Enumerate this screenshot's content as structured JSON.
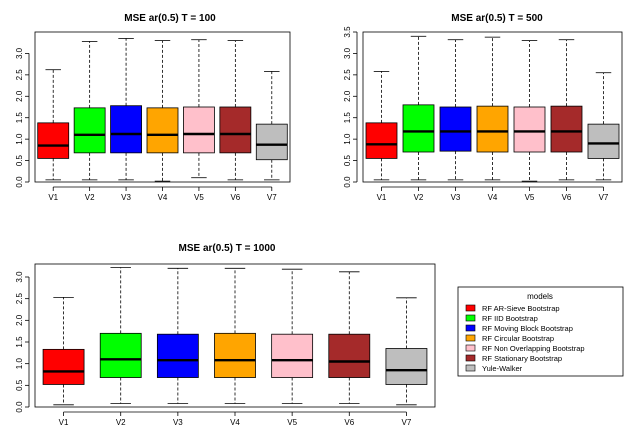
{
  "chart_data": [
    {
      "type": "boxplot",
      "title": "MSE ar(0.5) T = 100",
      "xlabel": "",
      "ylabel": "",
      "categories": [
        "V1",
        "V2",
        "V3",
        "V4",
        "V5",
        "V6",
        "V7"
      ],
      "ylim": [
        0,
        3.5
      ],
      "yticks": [
        0.0,
        0.5,
        1.0,
        1.5,
        2.0,
        2.5,
        3.0
      ],
      "ytick_labels": [
        "0.0",
        "0.5",
        "1.0",
        "1.5",
        "2.0",
        "2.5",
        "3.0"
      ],
      "grid": false,
      "boxes": [
        {
          "min": 0.05,
          "q1": 0.55,
          "median": 0.85,
          "q3": 1.38,
          "max": 2.62
        },
        {
          "min": 0.05,
          "q1": 0.68,
          "median": 1.1,
          "q3": 1.73,
          "max": 3.28
        },
        {
          "min": 0.05,
          "q1": 0.68,
          "median": 1.12,
          "q3": 1.78,
          "max": 3.35
        },
        {
          "min": 0.02,
          "q1": 0.68,
          "median": 1.1,
          "q3": 1.73,
          "max": 3.3
        },
        {
          "min": 0.1,
          "q1": 0.68,
          "median": 1.12,
          "q3": 1.75,
          "max": 3.32
        },
        {
          "min": 0.05,
          "q1": 0.68,
          "median": 1.12,
          "q3": 1.75,
          "max": 3.3
        },
        {
          "min": 0.05,
          "q1": 0.52,
          "median": 0.87,
          "q3": 1.35,
          "max": 2.58
        }
      ]
    },
    {
      "type": "boxplot",
      "title": "MSE ar(0.5) T = 500",
      "xlabel": "",
      "ylabel": "",
      "categories": [
        "V1",
        "V2",
        "V3",
        "V4",
        "V5",
        "V6",
        "V7"
      ],
      "ylim": [
        0,
        3.5
      ],
      "yticks": [
        0.0,
        0.5,
        1.0,
        1.5,
        2.0,
        2.5,
        3.0,
        3.5
      ],
      "ytick_labels": [
        "0.0",
        "0.5",
        "1.0",
        "1.5",
        "2.0",
        "2.5",
        "3.0",
        "3.5"
      ],
      "grid": false,
      "boxes": [
        {
          "min": 0.05,
          "q1": 0.55,
          "median": 0.88,
          "q3": 1.38,
          "max": 2.58
        },
        {
          "min": 0.05,
          "q1": 0.7,
          "median": 1.18,
          "q3": 1.8,
          "max": 3.4
        },
        {
          "min": 0.05,
          "q1": 0.72,
          "median": 1.18,
          "q3": 1.75,
          "max": 3.32
        },
        {
          "min": 0.05,
          "q1": 0.7,
          "median": 1.18,
          "q3": 1.77,
          "max": 3.38
        },
        {
          "min": 0.02,
          "q1": 0.7,
          "median": 1.18,
          "q3": 1.75,
          "max": 3.3
        },
        {
          "min": 0.05,
          "q1": 0.7,
          "median": 1.18,
          "q3": 1.77,
          "max": 3.32
        },
        {
          "min": 0.05,
          "q1": 0.55,
          "median": 0.9,
          "q3": 1.35,
          "max": 2.55
        }
      ]
    },
    {
      "type": "boxplot",
      "title": "MSE ar(0.5) T = 1000",
      "xlabel": "",
      "ylabel": "",
      "categories": [
        "V1",
        "V2",
        "V3",
        "V4",
        "V5",
        "V6",
        "V7"
      ],
      "ylim": [
        0,
        3.3
      ],
      "yticks": [
        0.0,
        0.5,
        1.0,
        1.5,
        2.0,
        2.5,
        3.0
      ],
      "ytick_labels": [
        "0.0",
        "0.5",
        "1.0",
        "1.5",
        "2.0",
        "2.5",
        "3.0"
      ],
      "grid": false,
      "boxes": [
        {
          "min": 0.05,
          "q1": 0.52,
          "median": 0.82,
          "q3": 1.33,
          "max": 2.53
        },
        {
          "min": 0.08,
          "q1": 0.68,
          "median": 1.1,
          "q3": 1.7,
          "max": 3.22
        },
        {
          "min": 0.08,
          "q1": 0.68,
          "median": 1.08,
          "q3": 1.68,
          "max": 3.2
        },
        {
          "min": 0.08,
          "q1": 0.68,
          "median": 1.08,
          "q3": 1.7,
          "max": 3.2
        },
        {
          "min": 0.08,
          "q1": 0.68,
          "median": 1.08,
          "q3": 1.68,
          "max": 3.18
        },
        {
          "min": 0.08,
          "q1": 0.68,
          "median": 1.05,
          "q3": 1.68,
          "max": 3.12
        },
        {
          "min": 0.05,
          "q1": 0.52,
          "median": 0.85,
          "q3": 1.35,
          "max": 2.52
        }
      ]
    }
  ],
  "legend": {
    "title": "models",
    "placement": "right of bottom panel",
    "items": [
      {
        "label": "RF AR-Sieve Bootstrap",
        "color": "#ff0000"
      },
      {
        "label": "RF IID Bootstrap",
        "color": "#00ff00"
      },
      {
        "label": "RF Moving Block Bootstrap",
        "color": "#0000ff"
      },
      {
        "label": "RF Circular Bootstrap",
        "color": "#ffa500"
      },
      {
        "label": "RF Non Overlapping Bootstrap",
        "color": "#ffc0cb"
      },
      {
        "label": "RF Stationary Bootstrap",
        "color": "#a52a2a"
      },
      {
        "label": "Yule-Walker",
        "color": "#bebebe"
      }
    ]
  }
}
